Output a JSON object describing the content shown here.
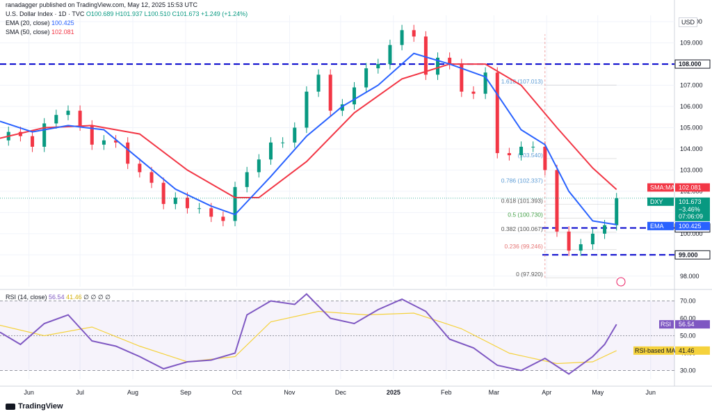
{
  "header": {
    "published": "ranadagger published on TradingView.com, May 12, 2025 15:53 UTC",
    "title": "U.S. Dollar Index · 1D · TVC",
    "ohlc": "O100.689 H101.937 L100.510 C101.673 +1.249 (+1.24%)",
    "ema_label": "EMA (20, close)",
    "ema_value": "100.425",
    "sma_label": "SMA (50, close)",
    "sma_value": "102.081",
    "rsi_label": "RSI (14, close)",
    "rsi_values": "56.54",
    "rsi_ma_value": "41.46",
    "rsi_zeros": "∅ ∅ ∅ ∅"
  },
  "currency": "USD",
  "brand": "TradingView",
  "colors": {
    "up": "#089981",
    "down": "#f23645",
    "ema": "#2962ff",
    "sma": "#f23645",
    "rsi": "#7e57c2",
    "rsi_ma": "#f5d23d",
    "fib": "#9c9c9c",
    "level_line": "#0000cc"
  },
  "chart_data": [
    {
      "type": "candlestick",
      "title": "U.S. Dollar Index · 1D · TVC",
      "x_ticks": [
        "Jun",
        "Jul",
        "Aug",
        "Sep",
        "Oct",
        "Nov",
        "Dec",
        "2025",
        "Feb",
        "Mar",
        "Apr",
        "May",
        "Jun"
      ],
      "y_ticks": [
        98.0,
        99.0,
        100.0,
        101.0,
        102.0,
        103.0,
        104.0,
        105.0,
        106.0,
        107.0,
        108.0,
        109.0,
        110.0
      ],
      "ylim": [
        97.5,
        110.3
      ],
      "grid": true,
      "close_series": [
        [
          "2024-05-15",
          104.4
        ],
        [
          "2024-05-20",
          104.8
        ],
        [
          "2024-05-27",
          104.6
        ],
        [
          "2024-06-03",
          104.1
        ],
        [
          "2024-06-10",
          105.2
        ],
        [
          "2024-06-17",
          105.6
        ],
        [
          "2024-06-24",
          105.8
        ],
        [
          "2024-07-01",
          105.1
        ],
        [
          "2024-07-08",
          104.2
        ],
        [
          "2024-07-15",
          104.4
        ],
        [
          "2024-07-22",
          104.3
        ],
        [
          "2024-07-29",
          103.3
        ],
        [
          "2024-08-05",
          102.9
        ],
        [
          "2024-08-12",
          102.4
        ],
        [
          "2024-08-19",
          101.4
        ],
        [
          "2024-08-26",
          101.7
        ],
        [
          "2024-09-02",
          101.2
        ],
        [
          "2024-09-09",
          101.2
        ],
        [
          "2024-09-16",
          100.8
        ],
        [
          "2024-09-23",
          100.6
        ],
        [
          "2024-09-30",
          102.2
        ],
        [
          "2024-10-07",
          102.9
        ],
        [
          "2024-10-14",
          103.5
        ],
        [
          "2024-10-21",
          104.3
        ],
        [
          "2024-10-28",
          104.3
        ],
        [
          "2024-11-04",
          105.0
        ],
        [
          "2024-11-11",
          106.7
        ],
        [
          "2024-11-18",
          107.5
        ],
        [
          "2024-11-25",
          105.8
        ],
        [
          "2024-12-02",
          106.1
        ],
        [
          "2024-12-09",
          106.9
        ],
        [
          "2024-12-16",
          107.8
        ],
        [
          "2024-12-23",
          108.0
        ],
        [
          "2024-12-30",
          108.9
        ],
        [
          "2025-01-06",
          109.6
        ],
        [
          "2025-01-13",
          109.3
        ],
        [
          "2025-01-20",
          107.5
        ],
        [
          "2025-01-27",
          108.3
        ],
        [
          "2025-02-03",
          108.0
        ],
        [
          "2025-02-10",
          106.7
        ],
        [
          "2025-02-17",
          106.6
        ],
        [
          "2025-02-24",
          107.6
        ],
        [
          "2025-03-03",
          103.8
        ],
        [
          "2025-03-10",
          103.7
        ],
        [
          "2025-03-17",
          104.1
        ],
        [
          "2025-03-24",
          104.1
        ],
        [
          "2025-03-31",
          103.0
        ],
        [
          "2025-04-07",
          100.1
        ],
        [
          "2025-04-14",
          99.2
        ],
        [
          "2025-04-21",
          99.5
        ],
        [
          "2025-04-28",
          100.0
        ],
        [
          "2025-05-05",
          100.4
        ],
        [
          "2025-05-12",
          101.673
        ]
      ],
      "ema20_series": [
        [
          "2024-05-15",
          105.3
        ],
        [
          "2024-06-03",
          104.8
        ],
        [
          "2024-06-24",
          105.1
        ],
        [
          "2024-07-15",
          104.9
        ],
        [
          "2024-08-05",
          103.5
        ],
        [
          "2024-08-26",
          102.1
        ],
        [
          "2024-09-16",
          101.3
        ],
        [
          "2024-09-30",
          100.9
        ],
        [
          "2024-10-21",
          102.7
        ],
        [
          "2024-11-11",
          104.6
        ],
        [
          "2024-12-02",
          106.0
        ],
        [
          "2024-12-23",
          107.0
        ],
        [
          "2025-01-13",
          108.5
        ],
        [
          "2025-02-03",
          108.0
        ],
        [
          "2025-02-24",
          107.4
        ],
        [
          "2025-03-17",
          104.9
        ],
        [
          "2025-03-31",
          104.2
        ],
        [
          "2025-04-14",
          102.0
        ],
        [
          "2025-04-28",
          100.6
        ],
        [
          "2025-05-12",
          100.425
        ]
      ],
      "sma50_series": [
        [
          "2024-05-15",
          104.5
        ],
        [
          "2024-06-10",
          105.0
        ],
        [
          "2024-07-08",
          105.1
        ],
        [
          "2024-08-05",
          104.7
        ],
        [
          "2024-09-02",
          103.0
        ],
        [
          "2024-09-30",
          101.7
        ],
        [
          "2024-10-14",
          101.7
        ],
        [
          "2024-11-11",
          103.4
        ],
        [
          "2024-12-09",
          105.7
        ],
        [
          "2025-01-06",
          107.3
        ],
        [
          "2025-02-03",
          108.0
        ],
        [
          "2025-02-24",
          108.0
        ],
        [
          "2025-03-17",
          107.0
        ],
        [
          "2025-04-07",
          105.0
        ],
        [
          "2025-04-28",
          103.1
        ],
        [
          "2025-05-12",
          102.081
        ]
      ],
      "fib_levels": [
        {
          "ratio": "0",
          "price": 97.92,
          "label": "0 (97.920)"
        },
        {
          "ratio": "0.236",
          "price": 99.246,
          "label": "0.236 (99.246)"
        },
        {
          "ratio": "0.382",
          "price": 100.067,
          "label": "0.382 (100.067)"
        },
        {
          "ratio": "0.5",
          "price": 100.73,
          "label": "0.5 (100.730)"
        },
        {
          "ratio": "0.618",
          "price": 101.393,
          "label": "0.618 (101.393)"
        },
        {
          "ratio": "0.786",
          "price": 102.337,
          "label": "0.786 (102.337)"
        },
        {
          "ratio": "1",
          "price": 103.54,
          "label": "(103.540)"
        },
        {
          "ratio": "1.618",
          "price": 107.013,
          "label": "1.618 (107.013)"
        }
      ],
      "horizontal_levels": [
        {
          "price": 108.0,
          "label": "108.000"
        },
        {
          "price": 100.27,
          "label": "100.270"
        },
        {
          "price": 99.0,
          "label": "99.000"
        }
      ],
      "price_labels": [
        {
          "name": "SMA:MA",
          "value": "102.081"
        },
        {
          "name": "DXY",
          "value": "101.673",
          "change": "−3.46%",
          "countdown": "07:06:09"
        },
        {
          "name": "EMA",
          "value": "100.425"
        }
      ]
    },
    {
      "type": "line",
      "title": "RSI (14, close)",
      "y_ticks": [
        30.0,
        40.0,
        50.0,
        60.0,
        70.0
      ],
      "ylim": [
        25,
        75
      ],
      "bands": [
        30,
        50,
        70
      ],
      "series": [
        {
          "name": "RSI",
          "last": "56.54",
          "points": [
            [
              "2024-05-15",
              52
            ],
            [
              "2024-05-27",
              45
            ],
            [
              "2024-06-10",
              57
            ],
            [
              "2024-06-24",
              62
            ],
            [
              "2024-07-08",
              47
            ],
            [
              "2024-07-22",
              44
            ],
            [
              "2024-08-05",
              38
            ],
            [
              "2024-08-19",
              31
            ],
            [
              "2024-09-02",
              35
            ],
            [
              "2024-09-16",
              36
            ],
            [
              "2024-09-30",
              40
            ],
            [
              "2024-10-07",
              62
            ],
            [
              "2024-10-21",
              70
            ],
            [
              "2024-11-04",
              68
            ],
            [
              "2024-11-11",
              74
            ],
            [
              "2024-11-25",
              60
            ],
            [
              "2024-12-09",
              57
            ],
            [
              "2024-12-23",
              65
            ],
            [
              "2025-01-06",
              71
            ],
            [
              "2025-01-20",
              64
            ],
            [
              "2025-02-03",
              48
            ],
            [
              "2025-02-17",
              43
            ],
            [
              "2025-03-03",
              33
            ],
            [
              "2025-03-17",
              30
            ],
            [
              "2025-03-31",
              37
            ],
            [
              "2025-04-14",
              28
            ],
            [
              "2025-04-28",
              38
            ],
            [
              "2025-05-05",
              45
            ],
            [
              "2025-05-12",
              56.54
            ]
          ]
        },
        {
          "name": "RSI-based MA",
          "last": "41.46",
          "points": [
            [
              "2024-05-15",
              56
            ],
            [
              "2024-06-10",
              50
            ],
            [
              "2024-07-08",
              55
            ],
            [
              "2024-08-05",
              44
            ],
            [
              "2024-09-02",
              35
            ],
            [
              "2024-09-30",
              38
            ],
            [
              "2024-10-21",
              58
            ],
            [
              "2024-11-18",
              64
            ],
            [
              "2024-12-16",
              62
            ],
            [
              "2025-01-13",
              63
            ],
            [
              "2025-02-10",
              54
            ],
            [
              "2025-03-10",
              40
            ],
            [
              "2025-04-07",
              34
            ],
            [
              "2025-04-28",
              35
            ],
            [
              "2025-05-12",
              41.46
            ]
          ]
        }
      ]
    }
  ]
}
